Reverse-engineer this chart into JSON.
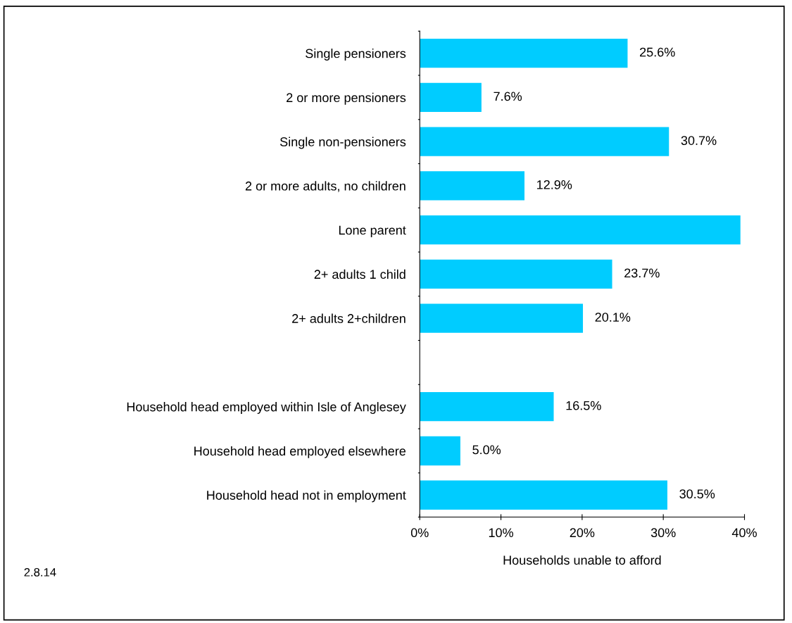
{
  "chart_data": {
    "type": "bar",
    "orientation": "horizontal",
    "xlabel": "Households unable to afford",
    "categories": [
      "Single pensioners",
      "2 or more pensioners",
      "Single non-pensioners",
      "2 or more adults, no children",
      "Lone parent",
      "2+ adults 1 child",
      "2+ adults 2+children",
      null,
      "Household head employed within Isle of Anglesey",
      "Household head employed elsewhere",
      "Household head not in employment"
    ],
    "values": [
      25.6,
      7.6,
      30.7,
      12.9,
      39.5,
      23.7,
      20.1,
      null,
      16.5,
      5.0,
      30.5
    ],
    "value_labels": [
      "25.6%",
      "7.6%",
      "30.7%",
      "12.9%",
      null,
      "23.7%",
      "20.1%",
      null,
      "16.5%",
      "5.0%",
      "30.5%"
    ],
    "color": "#00ccff",
    "xlim": [
      0,
      40
    ],
    "xticks": [
      {
        "value": 0,
        "label": "0%"
      },
      {
        "value": 10,
        "label": "10%"
      },
      {
        "value": 20,
        "label": "20%"
      },
      {
        "value": 30,
        "label": "30%"
      },
      {
        "value": 40,
        "label": "40%"
      }
    ],
    "grid": false,
    "legend": false,
    "annotations": [
      "2.8.14"
    ]
  }
}
